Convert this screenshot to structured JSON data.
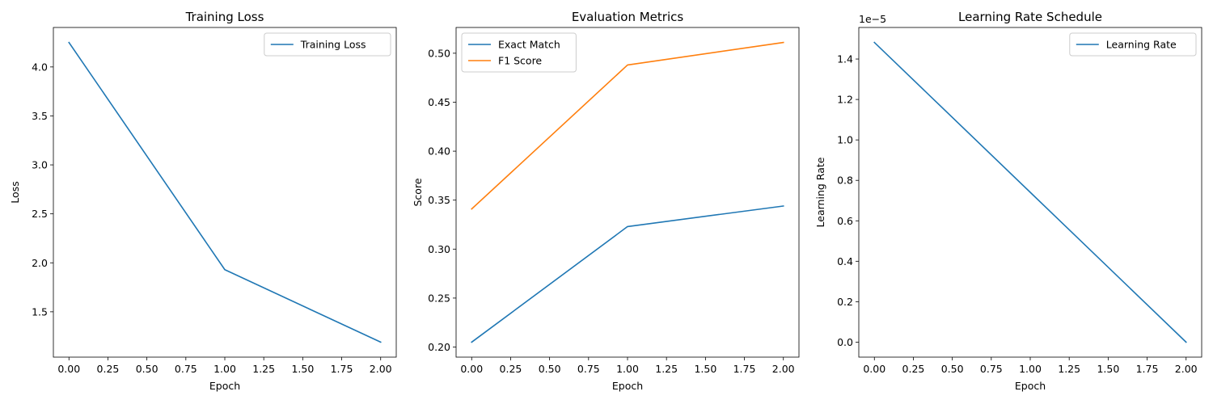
{
  "chart_data": [
    {
      "type": "line",
      "title": "Training Loss",
      "xlabel": "Epoch",
      "ylabel": "Loss",
      "x": [
        0,
        1,
        2
      ],
      "series": [
        {
          "name": "Training Loss",
          "color": "#1f77b4",
          "values": [
            4.25,
            1.93,
            1.19
          ]
        }
      ],
      "xlim": [
        -0.1,
        2.1
      ],
      "ylim": [
        1.037,
        4.403
      ],
      "xticks": [
        0,
        0.25,
        0.5,
        0.75,
        1,
        1.25,
        1.5,
        1.75,
        2
      ],
      "xtick_labels": [
        "0.00",
        "0.25",
        "0.50",
        "0.75",
        "1.00",
        "1.25",
        "1.50",
        "1.75",
        "2.00"
      ],
      "yticks": [
        1.5,
        2.0,
        2.5,
        3.0,
        3.5,
        4.0
      ],
      "ytick_labels": [
        "1.5",
        "2.0",
        "2.5",
        "3.0",
        "3.5",
        "4.0"
      ],
      "offset_text": "",
      "legend": "top-right",
      "grid": false
    },
    {
      "type": "line",
      "title": "Evaluation Metrics",
      "xlabel": "Epoch",
      "ylabel": "Score",
      "x": [
        0,
        1,
        2
      ],
      "series": [
        {
          "name": "Exact Match",
          "color": "#1f77b4",
          "values": [
            0.205,
            0.323,
            0.344
          ]
        },
        {
          "name": "F1 Score",
          "color": "#ff7f0e",
          "values": [
            0.341,
            0.488,
            0.511
          ]
        }
      ],
      "xlim": [
        -0.1,
        2.1
      ],
      "ylim": [
        0.1897,
        0.5263
      ],
      "xticks": [
        0,
        0.25,
        0.5,
        0.75,
        1,
        1.25,
        1.5,
        1.75,
        2
      ],
      "xtick_labels": [
        "0.00",
        "0.25",
        "0.50",
        "0.75",
        "1.00",
        "1.25",
        "1.50",
        "1.75",
        "2.00"
      ],
      "yticks": [
        0.2,
        0.25,
        0.3,
        0.35,
        0.4,
        0.45,
        0.5
      ],
      "ytick_labels": [
        "0.20",
        "0.25",
        "0.30",
        "0.35",
        "0.40",
        "0.45",
        "0.50"
      ],
      "offset_text": "",
      "legend": "top-left",
      "grid": false
    },
    {
      "type": "line",
      "title": "Learning Rate Schedule",
      "xlabel": "Epoch",
      "ylabel": "Learning Rate",
      "x": [
        0,
        1,
        2
      ],
      "series": [
        {
          "name": "Learning Rate",
          "color": "#1f77b4",
          "values": [
            1.482e-05,
            7.41e-06,
            0
          ]
        }
      ],
      "xlim": [
        -0.1,
        2.1
      ],
      "ylim": [
        -7.41e-07,
        1.556e-05
      ],
      "xticks": [
        0,
        0.25,
        0.5,
        0.75,
        1,
        1.25,
        1.5,
        1.75,
        2
      ],
      "xtick_labels": [
        "0.00",
        "0.25",
        "0.50",
        "0.75",
        "1.00",
        "1.25",
        "1.50",
        "1.75",
        "2.00"
      ],
      "yticks": [
        0,
        2e-06,
        4e-06,
        6e-06,
        8e-06,
        1e-05,
        1.2e-05,
        1.4e-05
      ],
      "ytick_labels": [
        "0.0",
        "0.2",
        "0.4",
        "0.6",
        "0.8",
        "1.0",
        "1.2",
        "1.4"
      ],
      "offset_text": "1e−5",
      "legend": "top-right",
      "grid": false
    }
  ]
}
